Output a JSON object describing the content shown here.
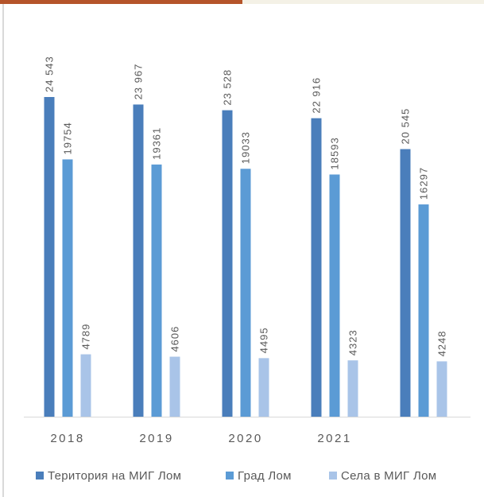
{
  "chart_data": {
    "type": "bar",
    "categories": [
      "2018",
      "2019",
      "2020",
      "2021",
      null
    ],
    "series": [
      {
        "name": "Територия на МИГ Лом",
        "color": "#4a7ebb",
        "values": [
          24543,
          23967,
          23528,
          22916,
          20545
        ],
        "value_labels": [
          "24 543",
          "23 967",
          "23 528",
          "22 916",
          "20 545"
        ]
      },
      {
        "name": "Град Лом",
        "color": "#5b9bd5",
        "values": [
          19754,
          19361,
          19033,
          18593,
          16297
        ]
      },
      {
        "name": "Села в МИГ Лом",
        "color": "#a9c4e8",
        "values": [
          4789,
          4606,
          4495,
          4323,
          4248
        ]
      }
    ],
    "legend": "bottom"
  }
}
